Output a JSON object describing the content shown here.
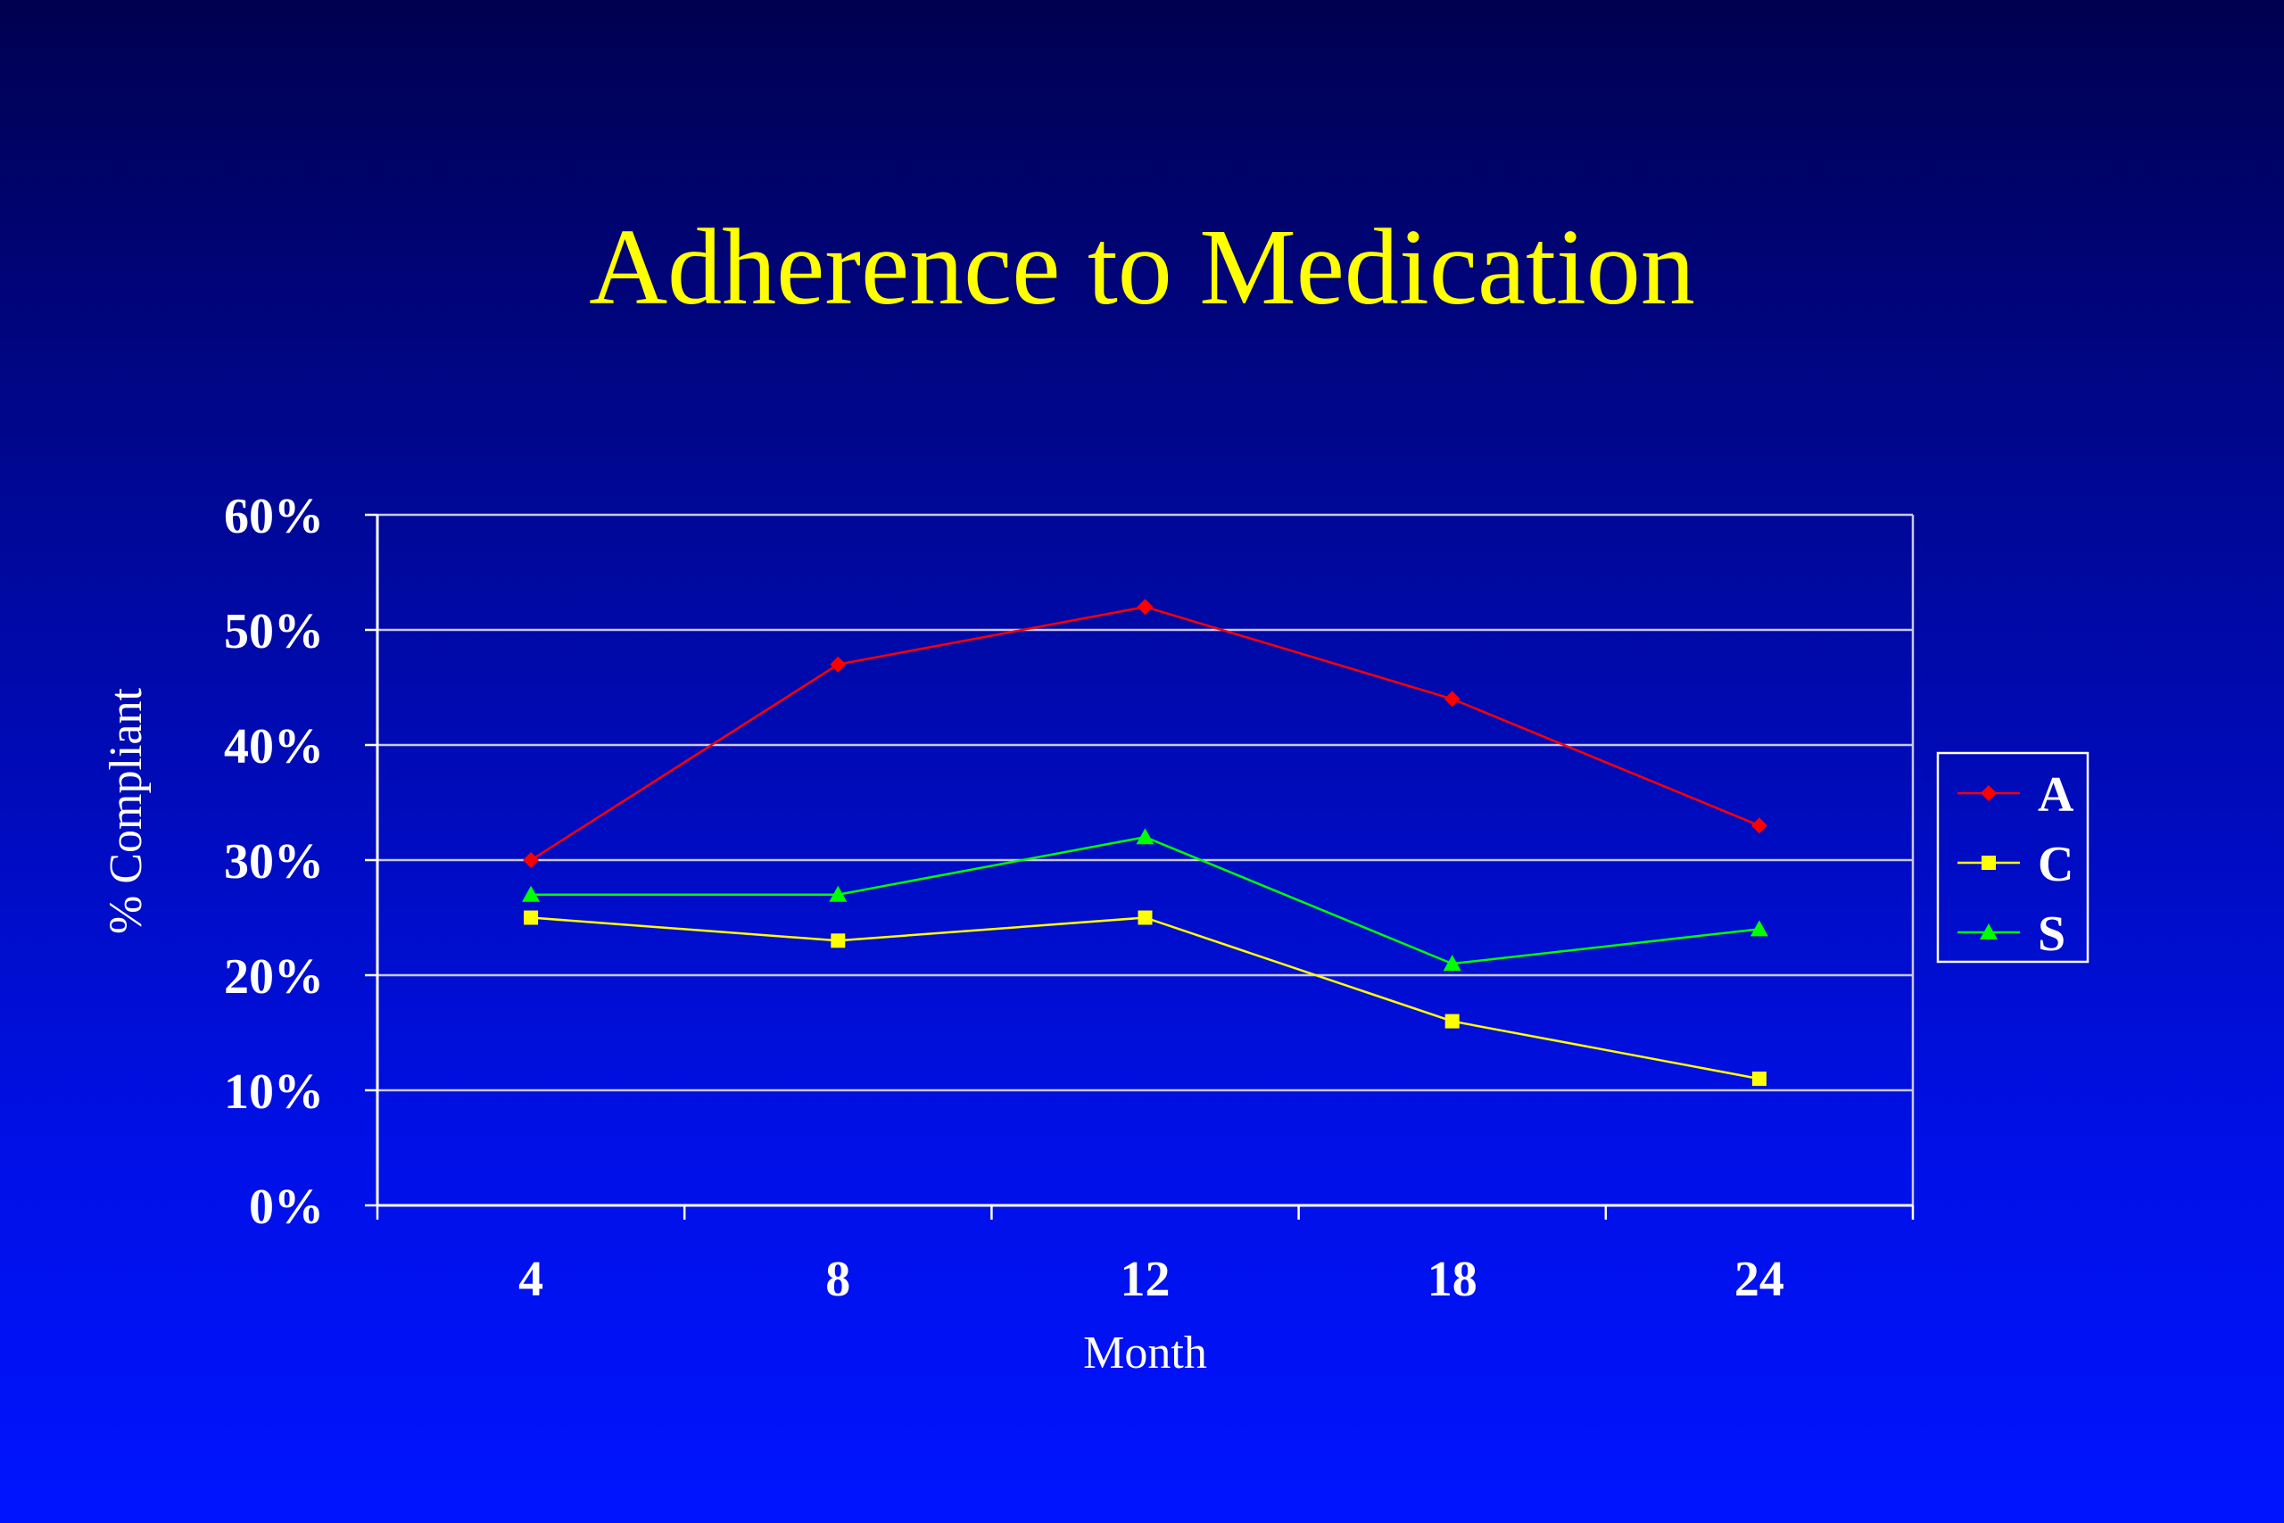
{
  "slide": {
    "title": "Adherence to Medication"
  },
  "colors": {
    "title": "#ffff00",
    "axis": "#ffffff",
    "gridline": "#c8c8e8"
  },
  "chart_data": {
    "type": "line",
    "xlabel": "Month",
    "ylabel": "% Compliant",
    "categories": [
      "4",
      "8",
      "12",
      "18",
      "24"
    ],
    "ylim": [
      0,
      60
    ],
    "yticks": [
      0,
      10,
      20,
      30,
      40,
      50,
      60
    ],
    "ytick_labels": [
      "0%",
      "10%",
      "20%",
      "30%",
      "40%",
      "50%",
      "60%"
    ],
    "grid": true,
    "legend_position": "right",
    "series": [
      {
        "name": "A",
        "values": [
          30,
          47,
          52,
          44,
          33
        ],
        "color": "#ff0000",
        "marker": "diamond"
      },
      {
        "name": "C",
        "values": [
          25,
          23,
          25,
          16,
          11
        ],
        "color": "#ffff00",
        "marker": "square"
      },
      {
        "name": "S",
        "values": [
          27,
          27,
          32,
          21,
          24
        ],
        "color": "#00ff00",
        "marker": "triangle"
      }
    ]
  }
}
